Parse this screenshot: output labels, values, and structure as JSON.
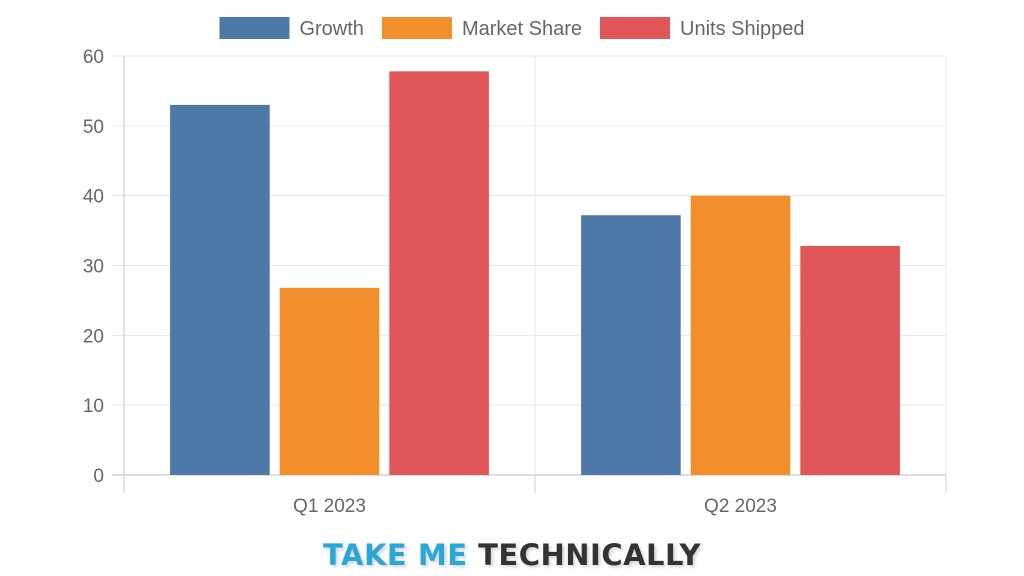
{
  "chart_data": {
    "type": "bar",
    "categories": [
      "Q1 2023",
      "Q2 2023"
    ],
    "series": [
      {
        "name": "Growth",
        "values": [
          53,
          37.2
        ],
        "color": "#4e79a7"
      },
      {
        "name": "Market Share",
        "values": [
          26.8,
          40
        ],
        "color": "#f28e2b"
      },
      {
        "name": "Units Shipped",
        "values": [
          57.8,
          32.8
        ],
        "color": "#e15759"
      }
    ],
    "ylim": [
      0,
      60
    ],
    "yticks": [
      0,
      10,
      20,
      30,
      40,
      50,
      60
    ],
    "grid": true,
    "legend_position": "top"
  },
  "branding": {
    "part1": "TAKE ME",
    "part2": "TECHNICALLY"
  }
}
